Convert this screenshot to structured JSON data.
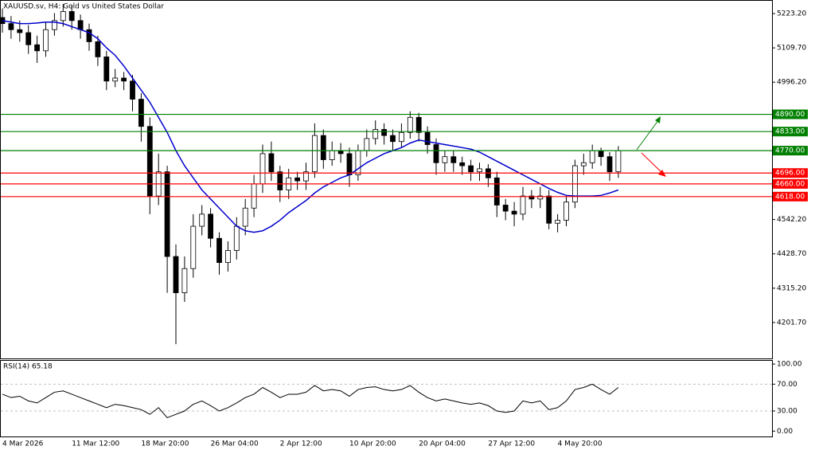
{
  "chart_data": [
    {
      "type": "candlestick",
      "title": "XAUUSD.sv, H4:  Gold vs United States Dollar",
      "categories": [
        "4 Mar 2026",
        null,
        null,
        null,
        null,
        null,
        null,
        null,
        "11 Mar 12:00",
        null,
        null,
        null,
        null,
        null,
        null,
        null,
        "18 Mar 20:00",
        null,
        null,
        null,
        null,
        null,
        null,
        null,
        "26 Mar 04:00",
        null,
        null,
        null,
        null,
        null,
        null,
        null,
        "2 Apr 12:00",
        null,
        null,
        null,
        null,
        null,
        null,
        null,
        "10 Apr 20:00",
        null,
        null,
        null,
        null,
        null,
        null,
        null,
        "20 Apr 04:00",
        null,
        null,
        null,
        null,
        null,
        null,
        null,
        "27 Apr 12:00",
        null,
        null,
        null,
        null,
        null,
        null,
        null,
        "4 May 20:00",
        null,
        null,
        null,
        null,
        null,
        null,
        null
      ],
      "open": [
        5210,
        5190,
        5170,
        5160,
        5120,
        5100,
        5170,
        5200,
        5230,
        5200,
        5170,
        5130,
        5080,
        5000,
        5010,
        5000,
        4940,
        4850,
        4620,
        4700,
        4420,
        4300,
        4380,
        4520,
        4560,
        4480,
        4400,
        4440,
        4520,
        4580,
        4660,
        4760,
        4700,
        4640,
        4680,
        4670,
        4700,
        4820,
        4740,
        4770,
        4760,
        4690,
        4770,
        4810,
        4840,
        4820,
        4800,
        4830,
        4880,
        4830,
        4790,
        4730,
        4750,
        4730,
        4720,
        4700,
        4710,
        4680,
        4590,
        4570,
        4560,
        4620,
        4610,
        4620,
        4530,
        4540,
        4600,
        4720,
        4730,
        4770,
        4750,
        4700
      ],
      "high": [
        5240,
        5215,
        5200,
        5185,
        5150,
        5195,
        5225,
        5255,
        5250,
        5220,
        5190,
        5150,
        5100,
        5040,
        5030,
        5020,
        4960,
        4880,
        4760,
        4720,
        4460,
        4420,
        4560,
        4590,
        4580,
        4500,
        4470,
        4550,
        4610,
        4690,
        4790,
        4800,
        4720,
        4710,
        4700,
        4730,
        4860,
        4840,
        4800,
        4795,
        4780,
        4790,
        4840,
        4870,
        4860,
        4840,
        4860,
        4900,
        4895,
        4850,
        4810,
        4770,
        4770,
        4750,
        4740,
        4730,
        4725,
        4700,
        4610,
        4600,
        4650,
        4640,
        4650,
        4640,
        4560,
        4620,
        4740,
        4760,
        4790,
        4780,
        4765,
        4785
      ],
      "low": [
        5160,
        5140,
        5130,
        5090,
        5060,
        5080,
        5150,
        5180,
        5170,
        5140,
        5100,
        5050,
        4970,
        4980,
        4970,
        4900,
        4800,
        4560,
        4590,
        4300,
        4130,
        4270,
        4350,
        4490,
        4450,
        4360,
        4370,
        4410,
        4490,
        4550,
        4630,
        4670,
        4600,
        4610,
        4640,
        4640,
        4680,
        4710,
        4720,
        4730,
        4650,
        4670,
        4750,
        4790,
        4790,
        4770,
        4780,
        4810,
        4800,
        4760,
        4690,
        4700,
        4700,
        4690,
        4670,
        4670,
        4650,
        4550,
        4540,
        4520,
        4540,
        4580,
        4580,
        4510,
        4500,
        4520,
        4580,
        4690,
        4710,
        4720,
        4670,
        4680
      ],
      "close": [
        5190,
        5170,
        5160,
        5120,
        5100,
        5170,
        5200,
        5230,
        5200,
        5170,
        5130,
        5080,
        5000,
        5010,
        5000,
        4940,
        4850,
        4620,
        4700,
        4420,
        4300,
        4380,
        4520,
        4560,
        4480,
        4400,
        4440,
        4520,
        4580,
        4660,
        4760,
        4700,
        4640,
        4680,
        4670,
        4700,
        4820,
        4740,
        4770,
        4760,
        4690,
        4770,
        4810,
        4840,
        4820,
        4800,
        4830,
        4880,
        4830,
        4790,
        4730,
        4750,
        4730,
        4720,
        4700,
        4710,
        4680,
        4590,
        4570,
        4560,
        4620,
        4610,
        4620,
        4530,
        4540,
        4600,
        4720,
        4730,
        4770,
        4750,
        4700,
        4770
      ],
      "series": [
        {
          "color": "#0000cc",
          "values": [
            5200,
            5195,
            5190,
            5190,
            5192,
            5195,
            5195,
            5190,
            5180,
            5170,
            5160,
            5140,
            5110,
            5085,
            5050,
            5010,
            4970,
            4930,
            4880,
            4830,
            4770,
            4720,
            4680,
            4640,
            4610,
            4580,
            4550,
            4520,
            4505,
            4500,
            4505,
            4520,
            4540,
            4565,
            4585,
            4605,
            4630,
            4650,
            4665,
            4680,
            4690,
            4710,
            4730,
            4745,
            4760,
            4770,
            4780,
            4795,
            4805,
            4800,
            4795,
            4790,
            4785,
            4780,
            4775,
            4765,
            4750,
            4735,
            4720,
            4705,
            4690,
            4675,
            4660,
            4645,
            4632,
            4622,
            4620,
            4620,
            4620,
            4622,
            4630,
            4640
          ]
        }
      ],
      "levels": [
        {
          "value": 4890,
          "label": "4890.00",
          "color": "#008000"
        },
        {
          "value": 4833,
          "label": "4833.00",
          "color": "#008000"
        },
        {
          "value": 4770,
          "label": "4770.00",
          "color": "#008000"
        },
        {
          "value": 4696,
          "label": "4696.00",
          "color": "#ff0000"
        },
        {
          "value": 4660,
          "label": "4660.00",
          "color": "#ff0000"
        },
        {
          "value": 4618,
          "label": "4618.00",
          "color": "#ff0000"
        }
      ],
      "ylim": [
        4083,
        5268
      ],
      "yticks": [
        {
          "value": 5223.2,
          "label": "5223.20"
        },
        {
          "value": 5109.7,
          "label": "5109.70"
        },
        {
          "value": 4996.2,
          "label": "4996.20"
        },
        {
          "value": 4542.2,
          "label": "4542.20"
        },
        {
          "value": 4428.7,
          "label": "4428.70"
        },
        {
          "value": 4315.2,
          "label": "4315.20"
        },
        {
          "value": 4201.7,
          "label": "4201.70"
        }
      ]
    },
    {
      "type": "line",
      "title": "RSI(14) 65.18",
      "series": [
        {
          "color": "#000000",
          "values": [
            55,
            50,
            52,
            45,
            42,
            50,
            58,
            60,
            55,
            50,
            45,
            40,
            35,
            40,
            38,
            35,
            32,
            25,
            35,
            20,
            25,
            30,
            40,
            45,
            38,
            30,
            35,
            42,
            50,
            55,
            65,
            58,
            50,
            55,
            55,
            58,
            68,
            60,
            62,
            60,
            52,
            62,
            65,
            66,
            62,
            60,
            62,
            68,
            58,
            50,
            45,
            48,
            45,
            42,
            40,
            42,
            38,
            30,
            28,
            30,
            45,
            42,
            45,
            32,
            35,
            45,
            62,
            65,
            70,
            62,
            55,
            65
          ]
        }
      ],
      "ylim": [
        -8,
        106
      ],
      "yticks": [
        {
          "value": 100,
          "label": "100.00"
        },
        {
          "value": 70,
          "label": "70.00"
        },
        {
          "value": 30,
          "label": "30.00"
        },
        {
          "value": 0,
          "label": "0.00"
        }
      ]
    }
  ]
}
